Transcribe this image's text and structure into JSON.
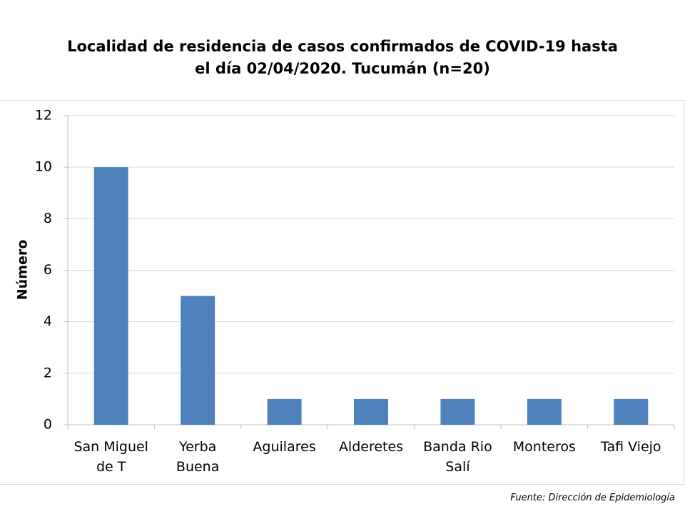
{
  "chart_data": {
    "type": "bar",
    "title": "Localidad de residencia de casos confirmados de COVID-19 hasta el día 02/04/2020. Tucumán (n=20)",
    "y_label": "Número",
    "categories": [
      "San Miguel de T",
      "Yerba Buena",
      "Aguilares",
      "Alderetes",
      "Banda Rio Salí",
      "Monteros",
      "Tafi Viejo"
    ],
    "values": [
      10,
      5,
      1,
      1,
      1,
      1,
      1
    ],
    "color": "#4f81bd",
    "ylim": [
      0,
      12
    ],
    "yticks": [
      0,
      2,
      4,
      6,
      8,
      10,
      12
    ],
    "grid": true,
    "source": "Fuente: Dirección de Epidemiología"
  }
}
